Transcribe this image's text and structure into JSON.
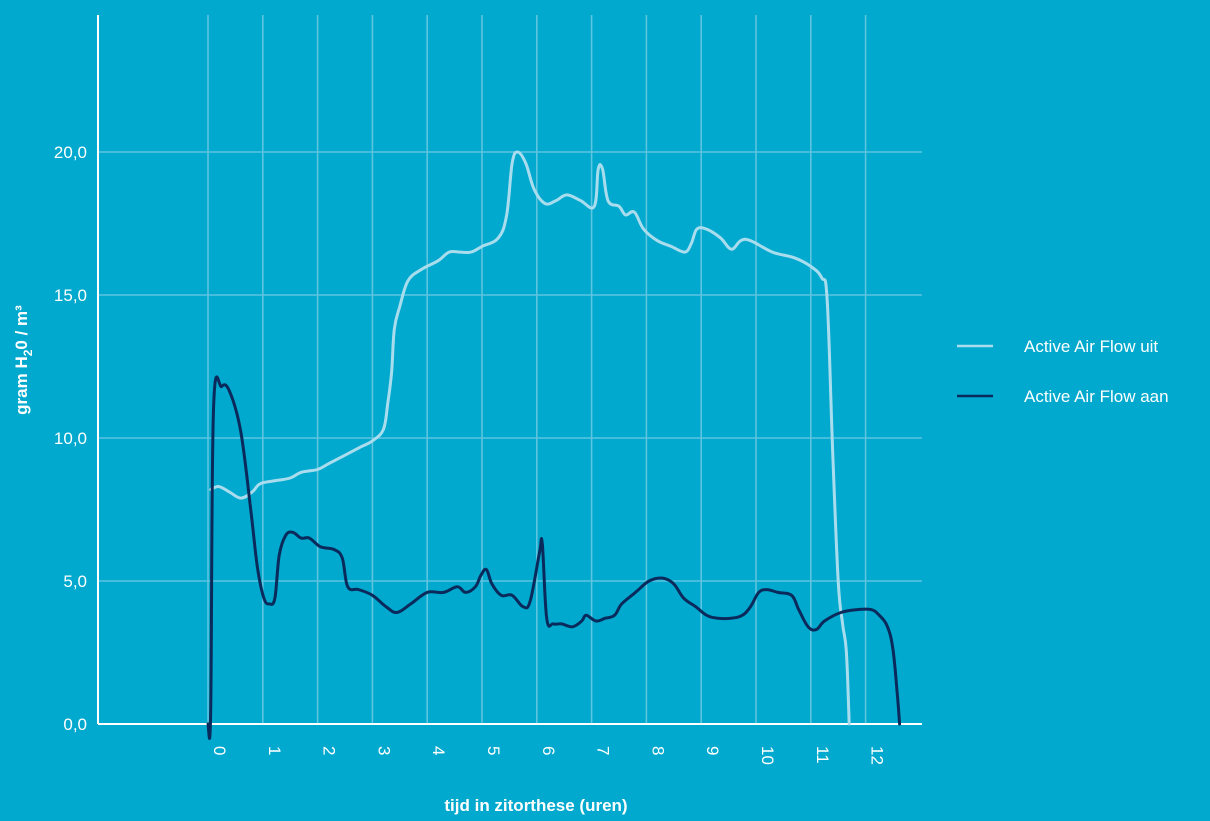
{
  "chart_data": {
    "type": "line",
    "title": "",
    "xlabel": "tijd in zitorthese (uren)",
    "ylabel_main": "gram H",
    "ylabel_sub": "2",
    "ylabel_rest": "0 / m³",
    "xlim": [
      -2,
      13
    ],
    "ylim": [
      0,
      24
    ],
    "x_ticks": [
      0,
      1,
      2,
      3,
      4,
      5,
      6,
      7,
      8,
      9,
      10,
      11,
      12
    ],
    "x_tick_labels": [
      "0",
      "1",
      "2",
      "3",
      "4",
      "5",
      "6",
      "7",
      "8",
      "9",
      "10",
      "11",
      "12"
    ],
    "y_ticks": [
      0,
      5,
      10,
      15,
      20
    ],
    "y_tick_labels": [
      "0,0",
      "5,0",
      "10,0",
      "15,0",
      "20,0"
    ],
    "grid": true,
    "legend_position": "right",
    "series": [
      {
        "name": "Active Air Flow uit",
        "color": "#A9DDEE",
        "points": [
          [
            0.05,
            8.2
          ],
          [
            0.2,
            8.3
          ],
          [
            0.4,
            8.1
          ],
          [
            0.6,
            7.9
          ],
          [
            0.8,
            8.1
          ],
          [
            0.95,
            8.4
          ],
          [
            1.2,
            8.5
          ],
          [
            1.5,
            8.6
          ],
          [
            1.7,
            8.8
          ],
          [
            2.0,
            8.9
          ],
          [
            2.2,
            9.1
          ],
          [
            2.5,
            9.4
          ],
          [
            2.8,
            9.7
          ],
          [
            3.0,
            9.9
          ],
          [
            3.2,
            10.3
          ],
          [
            3.28,
            11.2
          ],
          [
            3.35,
            12.3
          ],
          [
            3.4,
            13.8
          ],
          [
            3.5,
            14.6
          ],
          [
            3.65,
            15.5
          ],
          [
            3.9,
            15.9
          ],
          [
            4.2,
            16.2
          ],
          [
            4.4,
            16.5
          ],
          [
            4.6,
            16.5
          ],
          [
            4.8,
            16.5
          ],
          [
            5.0,
            16.7
          ],
          [
            5.3,
            17.0
          ],
          [
            5.45,
            17.8
          ],
          [
            5.55,
            19.6
          ],
          [
            5.65,
            20.0
          ],
          [
            5.8,
            19.6
          ],
          [
            5.95,
            18.7
          ],
          [
            6.15,
            18.2
          ],
          [
            6.35,
            18.3
          ],
          [
            6.55,
            18.5
          ],
          [
            6.8,
            18.3
          ],
          [
            7.05,
            18.1
          ],
          [
            7.12,
            19.4
          ],
          [
            7.2,
            19.4
          ],
          [
            7.3,
            18.3
          ],
          [
            7.5,
            18.1
          ],
          [
            7.62,
            17.8
          ],
          [
            7.78,
            17.9
          ],
          [
            7.95,
            17.3
          ],
          [
            8.2,
            16.9
          ],
          [
            8.45,
            16.7
          ],
          [
            8.7,
            16.5
          ],
          [
            8.82,
            16.8
          ],
          [
            8.92,
            17.3
          ],
          [
            9.1,
            17.3
          ],
          [
            9.35,
            17.0
          ],
          [
            9.55,
            16.6
          ],
          [
            9.72,
            16.9
          ],
          [
            9.9,
            16.9
          ],
          [
            10.3,
            16.5
          ],
          [
            10.7,
            16.3
          ],
          [
            11.0,
            16.0
          ],
          [
            11.2,
            15.6
          ],
          [
            11.3,
            14.8
          ],
          [
            11.4,
            9.5
          ],
          [
            11.5,
            5.0
          ],
          [
            11.58,
            3.5
          ],
          [
            11.65,
            2.5
          ],
          [
            11.7,
            0.0
          ]
        ]
      },
      {
        "name": "Active Air Flow aan",
        "color": "#0B2A5C",
        "points": [
          [
            0.0,
            0.0
          ],
          [
            0.05,
            0.5
          ],
          [
            0.1,
            11.0
          ],
          [
            0.25,
            11.8
          ],
          [
            0.4,
            11.6
          ],
          [
            0.6,
            10.2
          ],
          [
            0.78,
            7.5
          ],
          [
            0.9,
            5.5
          ],
          [
            1.02,
            4.4
          ],
          [
            1.12,
            4.2
          ],
          [
            1.22,
            4.4
          ],
          [
            1.3,
            5.9
          ],
          [
            1.42,
            6.6
          ],
          [
            1.55,
            6.7
          ],
          [
            1.7,
            6.5
          ],
          [
            1.85,
            6.5
          ],
          [
            2.05,
            6.2
          ],
          [
            2.3,
            6.1
          ],
          [
            2.45,
            5.8
          ],
          [
            2.55,
            4.8
          ],
          [
            2.75,
            4.7
          ],
          [
            3.0,
            4.5
          ],
          [
            3.25,
            4.1
          ],
          [
            3.45,
            3.9
          ],
          [
            3.7,
            4.2
          ],
          [
            4.0,
            4.6
          ],
          [
            4.3,
            4.6
          ],
          [
            4.55,
            4.8
          ],
          [
            4.7,
            4.6
          ],
          [
            4.88,
            4.8
          ],
          [
            4.98,
            5.2
          ],
          [
            5.08,
            5.4
          ],
          [
            5.18,
            4.9
          ],
          [
            5.35,
            4.5
          ],
          [
            5.55,
            4.5
          ],
          [
            5.75,
            4.1
          ],
          [
            5.88,
            4.3
          ],
          [
            6.05,
            6.0
          ],
          [
            6.1,
            6.3
          ],
          [
            6.18,
            3.7
          ],
          [
            6.3,
            3.5
          ],
          [
            6.45,
            3.5
          ],
          [
            6.65,
            3.4
          ],
          [
            6.82,
            3.6
          ],
          [
            6.9,
            3.8
          ],
          [
            7.08,
            3.6
          ],
          [
            7.25,
            3.7
          ],
          [
            7.42,
            3.8
          ],
          [
            7.55,
            4.2
          ],
          [
            7.8,
            4.6
          ],
          [
            8.05,
            5.0
          ],
          [
            8.3,
            5.1
          ],
          [
            8.5,
            4.9
          ],
          [
            8.68,
            4.4
          ],
          [
            8.9,
            4.1
          ],
          [
            9.1,
            3.8
          ],
          [
            9.3,
            3.7
          ],
          [
            9.55,
            3.7
          ],
          [
            9.75,
            3.8
          ],
          [
            9.9,
            4.1
          ],
          [
            10.05,
            4.6
          ],
          [
            10.2,
            4.7
          ],
          [
            10.4,
            4.6
          ],
          [
            10.65,
            4.5
          ],
          [
            10.78,
            4.0
          ],
          [
            10.95,
            3.4
          ],
          [
            11.1,
            3.3
          ],
          [
            11.25,
            3.6
          ],
          [
            11.55,
            3.9
          ],
          [
            11.85,
            4.0
          ],
          [
            12.1,
            4.0
          ],
          [
            12.25,
            3.8
          ],
          [
            12.4,
            3.4
          ],
          [
            12.5,
            2.6
          ],
          [
            12.58,
            1.0
          ],
          [
            12.62,
            0.0
          ]
        ]
      }
    ]
  }
}
